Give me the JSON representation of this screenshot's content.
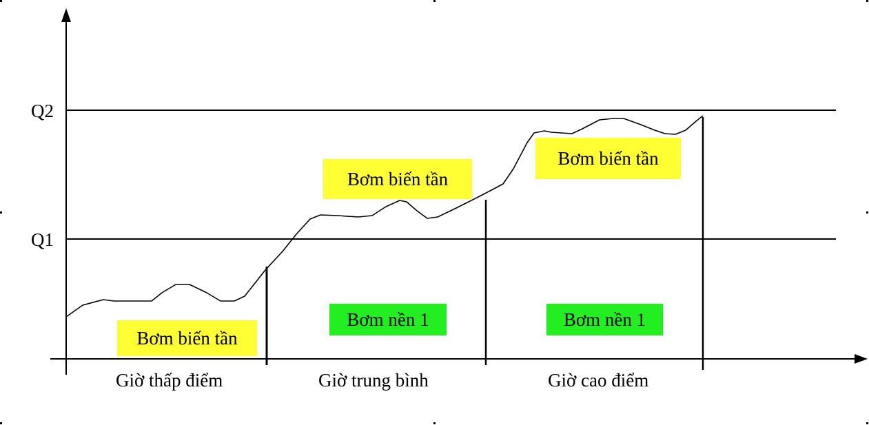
{
  "axis": {
    "levels": [
      {
        "label": "Q2"
      },
      {
        "label": "Q1"
      }
    ]
  },
  "periods": [
    {
      "label": "Giờ thấp điểm",
      "variable_pump": "Bơm biến tần"
    },
    {
      "label": "Giờ trung bình",
      "variable_pump": "Bơm biến tần",
      "base_pump": "Bơm nền 1"
    },
    {
      "label": "Giờ cao điểm",
      "variable_pump": "Bơm biến tần",
      "base_pump": "Bơm nền 1"
    }
  ],
  "colors": {
    "variable_pump_highlight": "#ffff33",
    "base_pump_highlight": "#22ee22",
    "lines": "#000000"
  }
}
